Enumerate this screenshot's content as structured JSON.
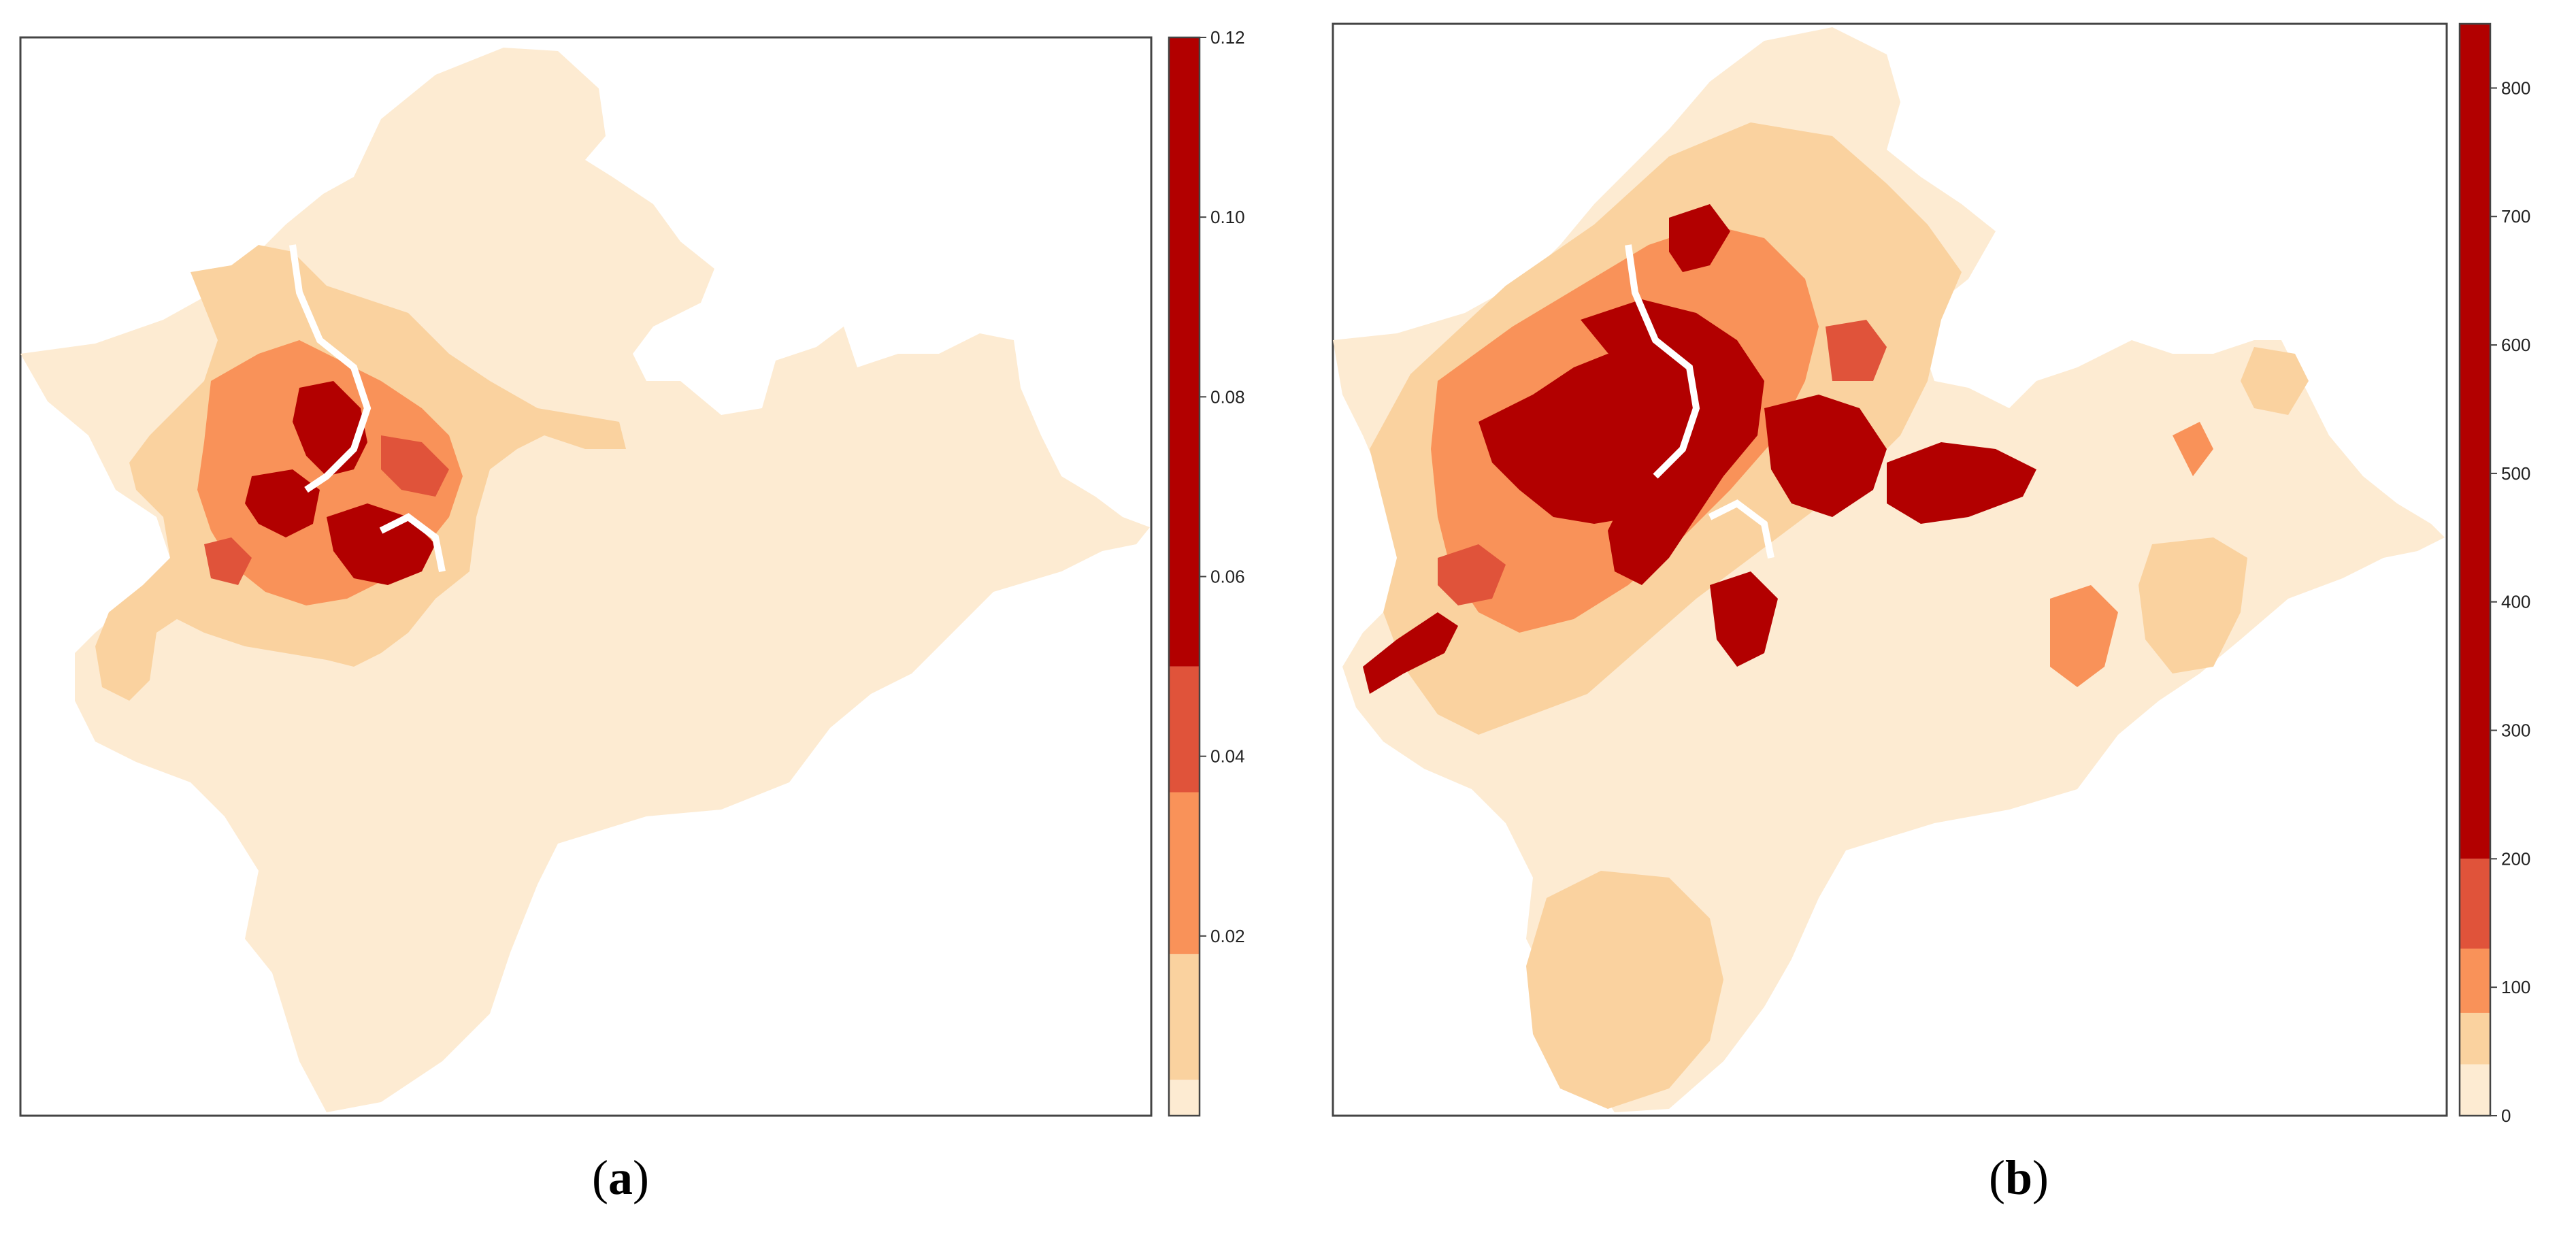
{
  "colors": {
    "class1": "#FDEBD2",
    "class2": "#FAD29F",
    "class3": "#F99259",
    "class4": "#E0533A",
    "class5": "#B20000",
    "frame": "#444444"
  },
  "panels": [
    {
      "id": "a",
      "label_open": "(",
      "label_letter": "a",
      "label_close": ")",
      "legend": {
        "min": 0,
        "max": 0.12,
        "ticks": [
          "0.02",
          "0.04",
          "0.06",
          "0.08",
          "0.10",
          "0.12"
        ],
        "tick_values": [
          0.02,
          0.04,
          0.06,
          0.08,
          0.1,
          0.12
        ],
        "class_breaks": [
          0,
          0.004,
          0.018,
          0.036,
          0.05,
          0.12
        ]
      }
    },
    {
      "id": "b",
      "label_open": "(",
      "label_letter": "b",
      "label_close": ")",
      "legend": {
        "min": 0,
        "max": 850,
        "ticks": [
          "0",
          "100",
          "200",
          "300",
          "400",
          "500",
          "600",
          "700",
          "800"
        ],
        "tick_values": [
          0,
          100,
          200,
          300,
          400,
          500,
          600,
          700,
          800
        ],
        "class_breaks": [
          0,
          40,
          80,
          130,
          200,
          850
        ]
      }
    }
  ]
}
